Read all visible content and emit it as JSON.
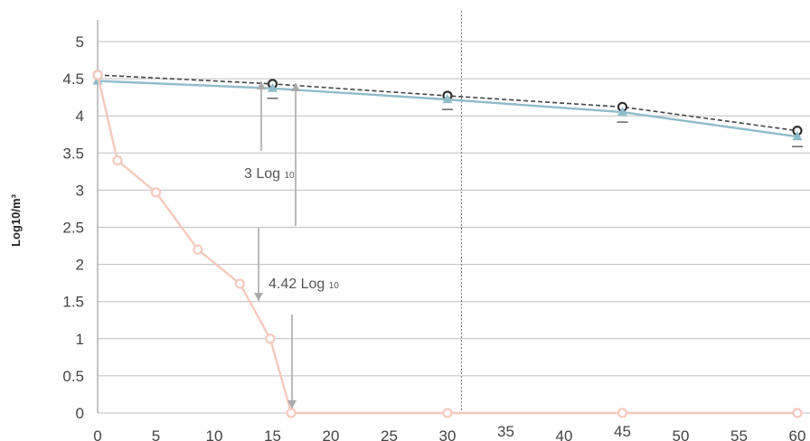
{
  "chart_data": {
    "type": "line",
    "ylabel": "Log10/m³",
    "xlabel": "",
    "xlim": [
      0,
      60
    ],
    "ylim": [
      0,
      5
    ],
    "x_ticks": [
      "0",
      "5",
      "10",
      "15",
      "20",
      "25",
      "30",
      "35",
      "40",
      "45",
      "50",
      "55",
      "60"
    ],
    "y_ticks": [
      "0",
      "0.5",
      "1",
      "1.5",
      "2",
      "2.5",
      "3",
      "3.5",
      "4",
      "4.5",
      "5"
    ],
    "grid": "horizontal",
    "series": [
      {
        "style": "dashed-circle",
        "color": "#444444",
        "x": [
          0,
          15,
          30,
          45,
          60
        ],
        "y": [
          4.55,
          4.43,
          4.27,
          4.12,
          3.8
        ]
      },
      {
        "style": "solid-triangle",
        "color": "#8fbccb",
        "x": [
          0,
          15,
          30,
          45,
          60
        ],
        "y": [
          4.47,
          4.37,
          4.22,
          4.05,
          3.72
        ]
      },
      {
        "style": "solid-circle",
        "color": "#f5c9bd",
        "x": [
          0,
          1.7,
          5,
          8.6,
          12.2,
          14.8,
          16.6,
          30,
          45,
          60
        ],
        "y": [
          4.55,
          3.4,
          2.97,
          2.2,
          1.74,
          1.0,
          0.0,
          0.0,
          0.0,
          0.0
        ]
      }
    ],
    "vline_x": 31.2,
    "annotations": [
      {
        "text": "3 Log",
        "sub": "10"
      },
      {
        "text": "4.42 Log",
        "sub": "10"
      }
    ]
  }
}
